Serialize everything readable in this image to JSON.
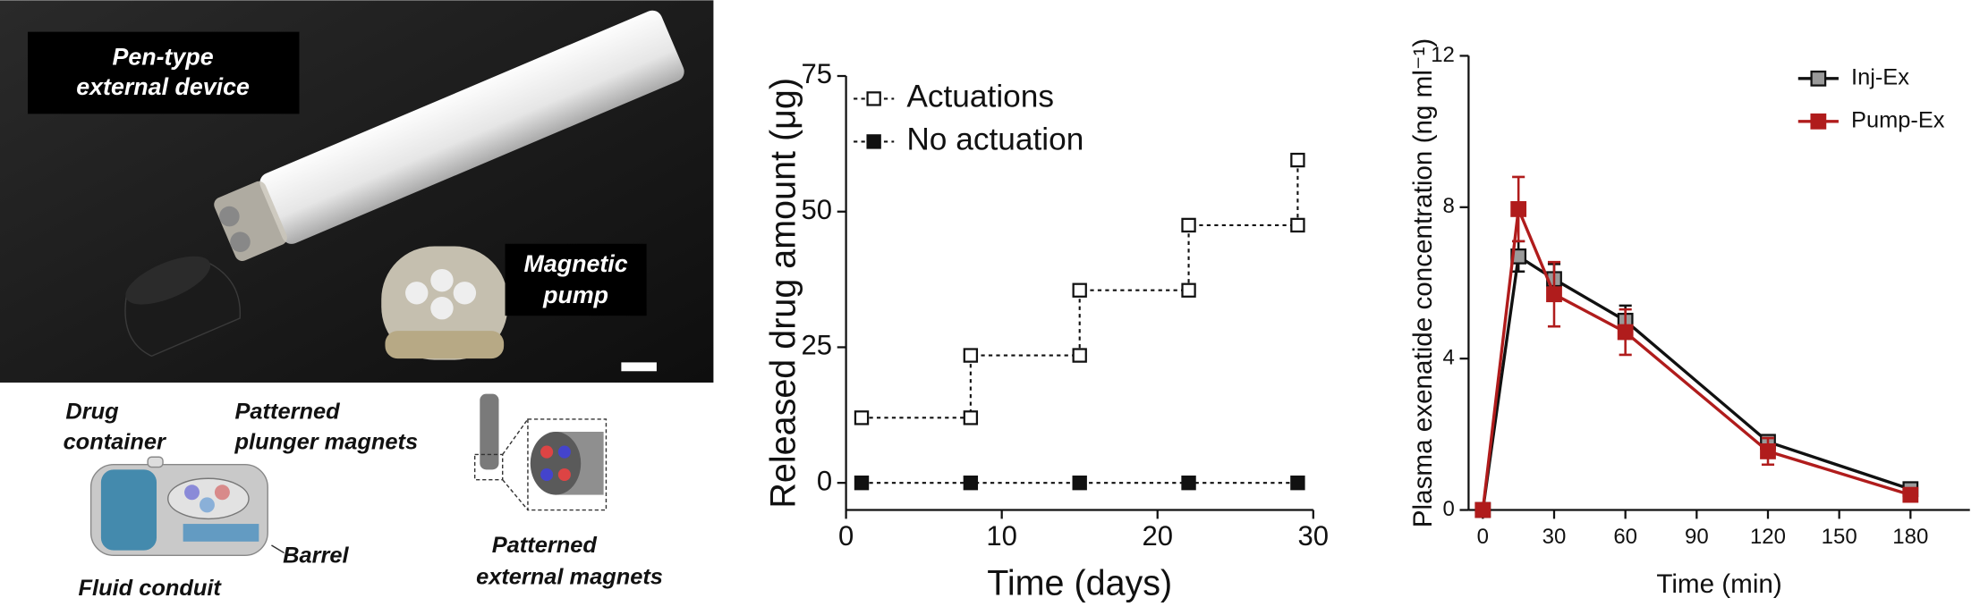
{
  "photo": {
    "pen_label": [
      "Pen-type",
      "external device"
    ],
    "pump_label": [
      "Magnetic",
      "pump"
    ],
    "drug_container": [
      "Drug",
      "container"
    ],
    "plunger_magnets": [
      "Patterned",
      "plunger magnets"
    ],
    "barrel": "Barrel",
    "fluid_conduit": "Fluid conduit",
    "external_magnets": [
      "Patterned",
      "external magnets"
    ]
  },
  "chart_data": [
    {
      "type": "line",
      "xlabel": "Time (days)",
      "ylabel": "Released drug amount (μg)",
      "xlim": [
        0,
        30
      ],
      "xticks": [
        0,
        10,
        20,
        30
      ],
      "ylim": [
        -5,
        75
      ],
      "yticks": [
        0,
        25,
        50,
        75
      ],
      "legend": "upper left",
      "line_style": "dashed",
      "series": [
        {
          "name": "Actuations",
          "color": "#111111",
          "marker": "square-open",
          "x": [
            1,
            8,
            8,
            15,
            15,
            22,
            22,
            29,
            29
          ],
          "values": [
            12,
            12,
            23.5,
            23.5,
            35.5,
            35.5,
            47.5,
            47.5,
            59.5
          ]
        },
        {
          "name": "No actuation",
          "color": "#111111",
          "marker": "square-filled",
          "x": [
            1,
            8,
            15,
            22,
            29
          ],
          "values": [
            0,
            0,
            0,
            0,
            0
          ]
        }
      ]
    },
    {
      "type": "line",
      "xlabel": "Time (min)",
      "ylabel": "Plasma exenatide concentration (ng ml⁻¹)",
      "xlim": [
        -6,
        205
      ],
      "xticks": [
        0,
        30,
        60,
        90,
        120,
        150,
        180
      ],
      "ylim": [
        0,
        12
      ],
      "yticks": [
        0,
        4,
        8,
        12
      ],
      "legend": "upper right",
      "line_style": "solid",
      "series": [
        {
          "name": "Inj-Ex",
          "color": "#111111",
          "marker_fill": "#9a9a9a",
          "marker": "square-filled",
          "x": [
            0,
            15,
            30,
            60,
            120,
            180
          ],
          "values": [
            0,
            6.7,
            6.1,
            5.0,
            1.8,
            0.55
          ],
          "errors": [
            0,
            0.4,
            0.4,
            0.4,
            0.15,
            0.1
          ]
        },
        {
          "name": "Pump-Ex",
          "color": "#b01c1c",
          "marker_fill": "#b01c1c",
          "marker": "square-filled",
          "x": [
            0,
            15,
            30,
            60,
            120,
            180
          ],
          "values": [
            0,
            7.95,
            5.7,
            4.7,
            1.55,
            0.4
          ],
          "errors": [
            0,
            0.85,
            0.85,
            0.6,
            0.35,
            0.1
          ]
        }
      ]
    }
  ]
}
